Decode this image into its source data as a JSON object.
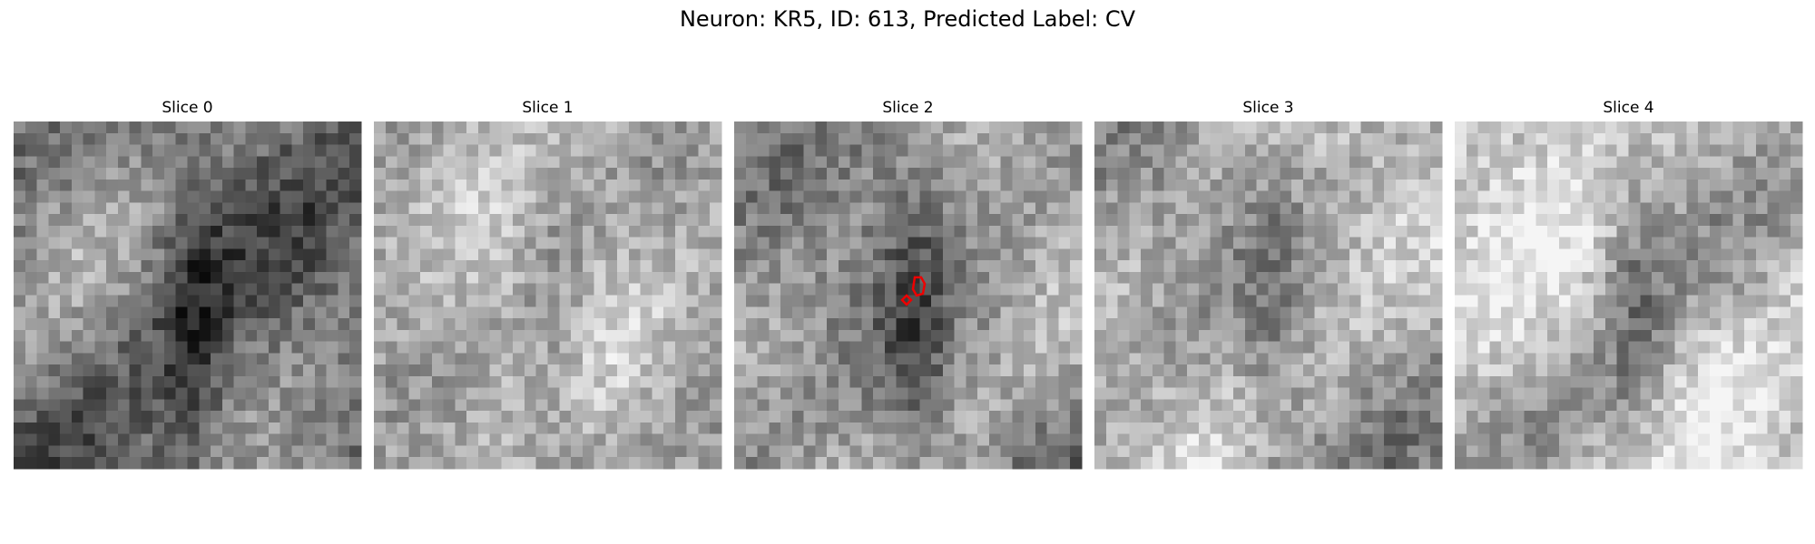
{
  "header": {
    "title": "Neuron: KR5, ID: 613, Predicted Label: CV"
  },
  "panels": [
    {
      "title": "Slice 0"
    },
    {
      "title": "Slice 1"
    },
    {
      "title": "Slice 2"
    },
    {
      "title": "Slice 3"
    },
    {
      "title": "Slice 4"
    }
  ]
}
